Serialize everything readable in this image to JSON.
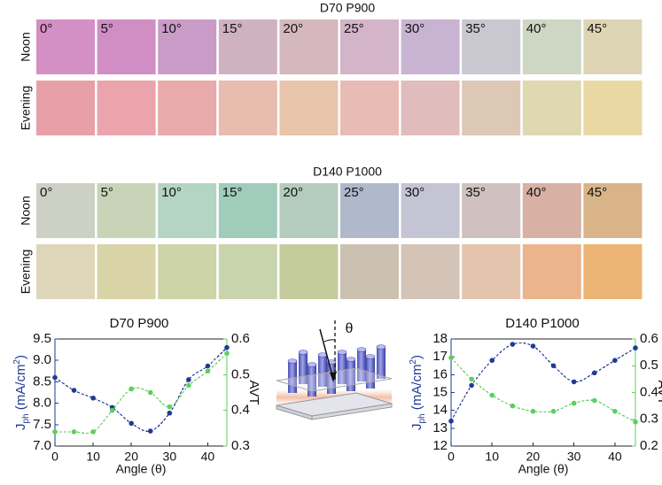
{
  "swatch_grids": [
    {
      "title": "D70 P900",
      "rows": [
        "Noon",
        "Evening"
      ],
      "angles": [
        "0°",
        "5°",
        "10°",
        "15°",
        "20°",
        "25°",
        "30°",
        "35°",
        "40°",
        "45°"
      ],
      "colors": [
        [
          "#d48fc4",
          "#d08ec4",
          "#c99cc8",
          "#cfb2c0",
          "#d4b8be",
          "#d4b4c8",
          "#c8b4d2",
          "#c9c7d0",
          "#cdd7c3",
          "#ddd5b4"
        ],
        [
          "#e8a0a8",
          "#eba4ab",
          "#e8aaaa",
          "#e8bcae",
          "#e8c4aa",
          "#e8bcb4",
          "#e0bcbc",
          "#dcc8b4",
          "#e0d8b0",
          "#ead8a4"
        ]
      ]
    },
    {
      "title": "D140 P1000",
      "rows": [
        "Noon",
        "Evening"
      ],
      "angles": [
        "0°",
        "5°",
        "10°",
        "15°",
        "20°",
        "25°",
        "30°",
        "35°",
        "40°",
        "45°"
      ],
      "colors": [
        [
          "#cdd0c4",
          "#c8d4b8",
          "#b4d4c4",
          "#a0ccbc",
          "#b4ccbc",
          "#b0b8cc",
          "#c4c4d4",
          "#d0c0c0",
          "#d8b0a4",
          "#d8b488"
        ],
        [
          "#ddd6b8",
          "#d8d4a8",
          "#ccd4a8",
          "#c8d4ac",
          "#c4cc9c",
          "#ccc0b0",
          "#d4c4b8",
          "#e4c4ac",
          "#ecb48c",
          "#ecb474"
        ]
      ]
    }
  ],
  "diagram": {
    "angle_label": "θ"
  },
  "chart_data": [
    {
      "type": "line",
      "title": "D70 P900",
      "xlabel": "Angle (θ)",
      "ylabel": {
        "main": "J",
        "sub": "ph",
        "unit": " (mA/cm",
        "sup": "2",
        "close": ")"
      },
      "y2label": "AVT",
      "x": [
        0,
        5,
        10,
        15,
        20,
        25,
        30,
        35,
        40,
        45
      ],
      "xlim": [
        0,
        45
      ],
      "xticks": [
        0,
        10,
        20,
        30,
        40
      ],
      "ylim": [
        7,
        9.5
      ],
      "yticks": [
        {
          "value": 7,
          "label": "7.0"
        },
        7.5,
        {
          "value": 8,
          "label": "8.0"
        },
        8.5,
        {
          "value": 9,
          "label": "9.0"
        },
        9.5
      ],
      "y2lim": [
        0.3,
        0.6
      ],
      "y2ticks": [
        0.3,
        0.4,
        0.5,
        0.6
      ],
      "series": [
        {
          "name": "Jph",
          "color": "#1f3a93",
          "values": [
            8.6,
            8.3,
            8.12,
            7.9,
            7.53,
            7.35,
            7.77,
            8.55,
            8.87,
            9.3
          ]
        },
        {
          "name": "AVT",
          "color": "#5ccf5c",
          "axis": "y2",
          "values": [
            0.34,
            0.34,
            0.34,
            0.4,
            0.46,
            0.45,
            0.41,
            0.47,
            0.51,
            0.56
          ]
        }
      ]
    },
    {
      "type": "line",
      "title": "D140 P1000",
      "xlabel": "Angle (θ)",
      "ylabel": {
        "main": "J",
        "sub": "ph",
        "unit": " (mA/cm",
        "sup": "2",
        "close": ")"
      },
      "y2label": "AVT",
      "x": [
        0,
        5,
        10,
        15,
        20,
        25,
        30,
        35,
        40,
        45
      ],
      "xlim": [
        0,
        45
      ],
      "xticks": [
        0,
        10,
        20,
        30,
        40
      ],
      "ylim": [
        12,
        18
      ],
      "yticks": [
        12,
        13,
        14,
        15,
        16,
        17,
        18
      ],
      "y2lim": [
        0.2,
        0.6
      ],
      "y2ticks": [
        0.2,
        0.3,
        0.4,
        0.5,
        0.6
      ],
      "series": [
        {
          "name": "Jph",
          "color": "#1f3a93",
          "values": [
            13.4,
            15.4,
            16.8,
            17.7,
            17.6,
            16.5,
            15.6,
            16.1,
            16.8,
            17.5
          ]
        },
        {
          "name": "AVT",
          "color": "#5ccf5c",
          "axis": "y2",
          "values": [
            0.53,
            0.45,
            0.39,
            0.35,
            0.33,
            0.33,
            0.36,
            0.37,
            0.33,
            0.29
          ]
        }
      ]
    }
  ]
}
